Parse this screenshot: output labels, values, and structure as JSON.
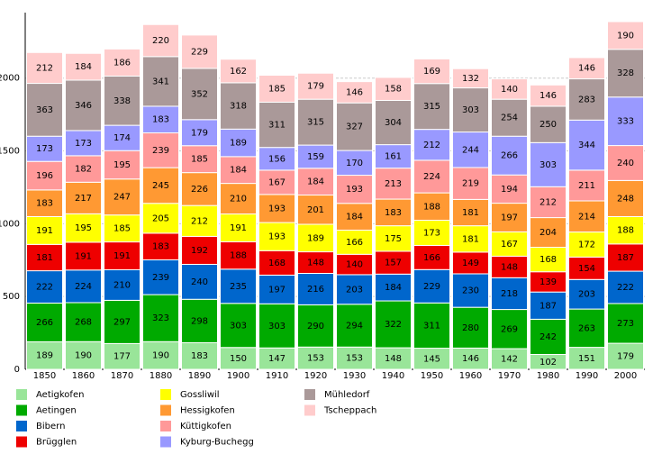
{
  "chart_data": {
    "type": "stacked_bar",
    "categories": [
      "1850",
      "1860",
      "1870",
      "1880",
      "1890",
      "1900",
      "1910",
      "1920",
      "1930",
      "1940",
      "1950",
      "1960",
      "1970",
      "1980",
      "1990",
      "2000"
    ],
    "series": [
      {
        "name": "Aetigkofen",
        "color": "#99e599",
        "values": [
          189,
          190,
          177,
          190,
          183,
          150,
          147,
          153,
          153,
          148,
          145,
          146,
          142,
          102,
          151,
          179
        ]
      },
      {
        "name": "Aetingen",
        "color": "#00aa00",
        "values": [
          266,
          268,
          297,
          323,
          298,
          303,
          303,
          290,
          294,
          322,
          311,
          280,
          269,
          242,
          263,
          273
        ]
      },
      {
        "name": "Bibern",
        "color": "#0066cc",
        "values": [
          222,
          224,
          210,
          239,
          240,
          235,
          197,
          216,
          203,
          184,
          229,
          230,
          218,
          187,
          203,
          222
        ]
      },
      {
        "name": "Brügglen",
        "color": "#ee0000",
        "values": [
          181,
          191,
          191,
          183,
          192,
          188,
          168,
          148,
          140,
          157,
          166,
          149,
          148,
          139,
          154,
          187
        ]
      },
      {
        "name": "Gossliwil",
        "color": "#ffff00",
        "values": [
          191,
          195,
          185,
          205,
          212,
          191,
          193,
          189,
          166,
          175,
          173,
          181,
          167,
          168,
          172,
          188
        ]
      },
      {
        "name": "Hessigkofen",
        "color": "#ff9933",
        "values": [
          183,
          217,
          247,
          245,
          226,
          210,
          193,
          201,
          184,
          183,
          188,
          181,
          197,
          204,
          214,
          248
        ]
      },
      {
        "name": "Küttigkofen",
        "color": "#ff9999",
        "values": [
          196,
          182,
          195,
          239,
          185,
          184,
          167,
          184,
          193,
          213,
          224,
          219,
          194,
          212,
          211,
          240
        ]
      },
      {
        "name": "Kyburg-Buchegg",
        "color": "#9999ff",
        "values": [
          173,
          173,
          174,
          183,
          179,
          189,
          156,
          159,
          170,
          161,
          212,
          244,
          266,
          303,
          344,
          333
        ]
      },
      {
        "name": "Mühledorf",
        "color": "#aa9999",
        "values": [
          363,
          346,
          338,
          341,
          352,
          318,
          311,
          315,
          327,
          304,
          315,
          303,
          254,
          250,
          283,
          328
        ]
      },
      {
        "name": "Tscheppach",
        "color": "#ffcccc",
        "values": [
          212,
          184,
          186,
          220,
          229,
          162,
          185,
          179,
          146,
          158,
          169,
          132,
          140,
          146,
          146,
          190
        ]
      }
    ],
    "ylim": [
      0,
      2450
    ],
    "yticks": [
      0,
      500,
      1000,
      1500,
      2000
    ],
    "grid": true
  }
}
